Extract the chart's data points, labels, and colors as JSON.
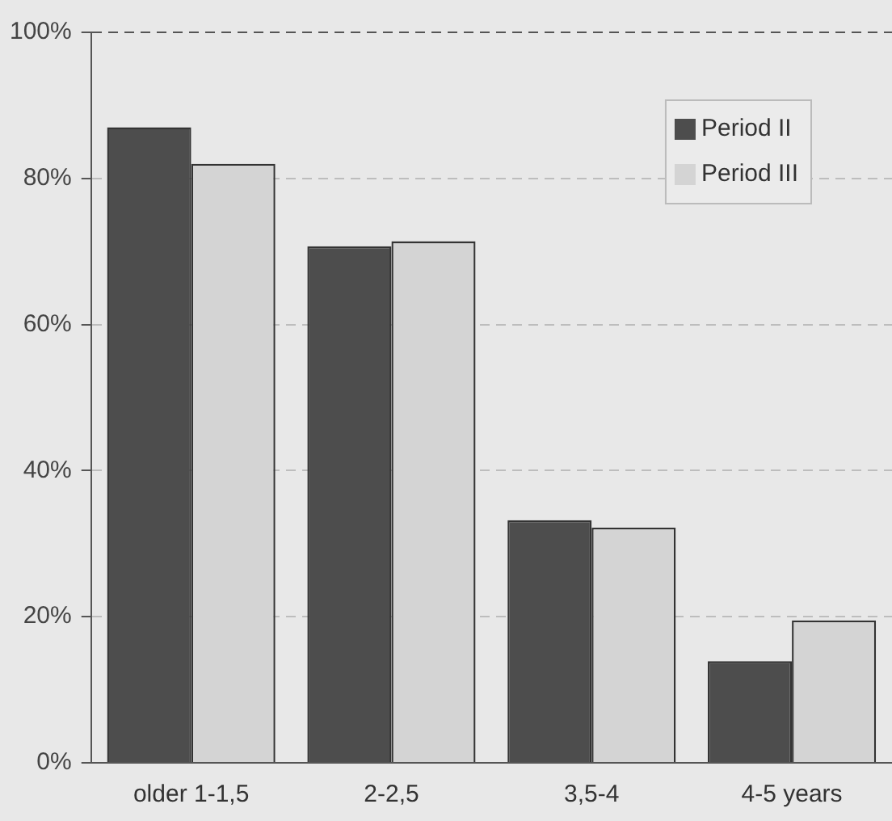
{
  "chart_data": {
    "type": "bar",
    "categories": [
      "older 1-1,5",
      "2-2,5",
      "3,5-4",
      "4-5 years"
    ],
    "series": [
      {
        "name": "Period II",
        "color": "#4d4d4d",
        "values": [
          87,
          70.7,
          33.2,
          13.9
        ]
      },
      {
        "name": "Period III",
        "color": "#d4d4d4",
        "values": [
          82,
          71.4,
          32.2,
          19.5
        ]
      }
    ],
    "ylim": [
      0,
      100
    ],
    "yticks": [
      {
        "value": 0,
        "label": "0%"
      },
      {
        "value": 20,
        "label": "20%"
      },
      {
        "value": 40,
        "label": "40%"
      },
      {
        "value": 60,
        "label": "60%"
      },
      {
        "value": 80,
        "label": "80%"
      },
      {
        "value": 100,
        "label": "100%"
      }
    ],
    "grid": "y",
    "legend": "top right"
  }
}
